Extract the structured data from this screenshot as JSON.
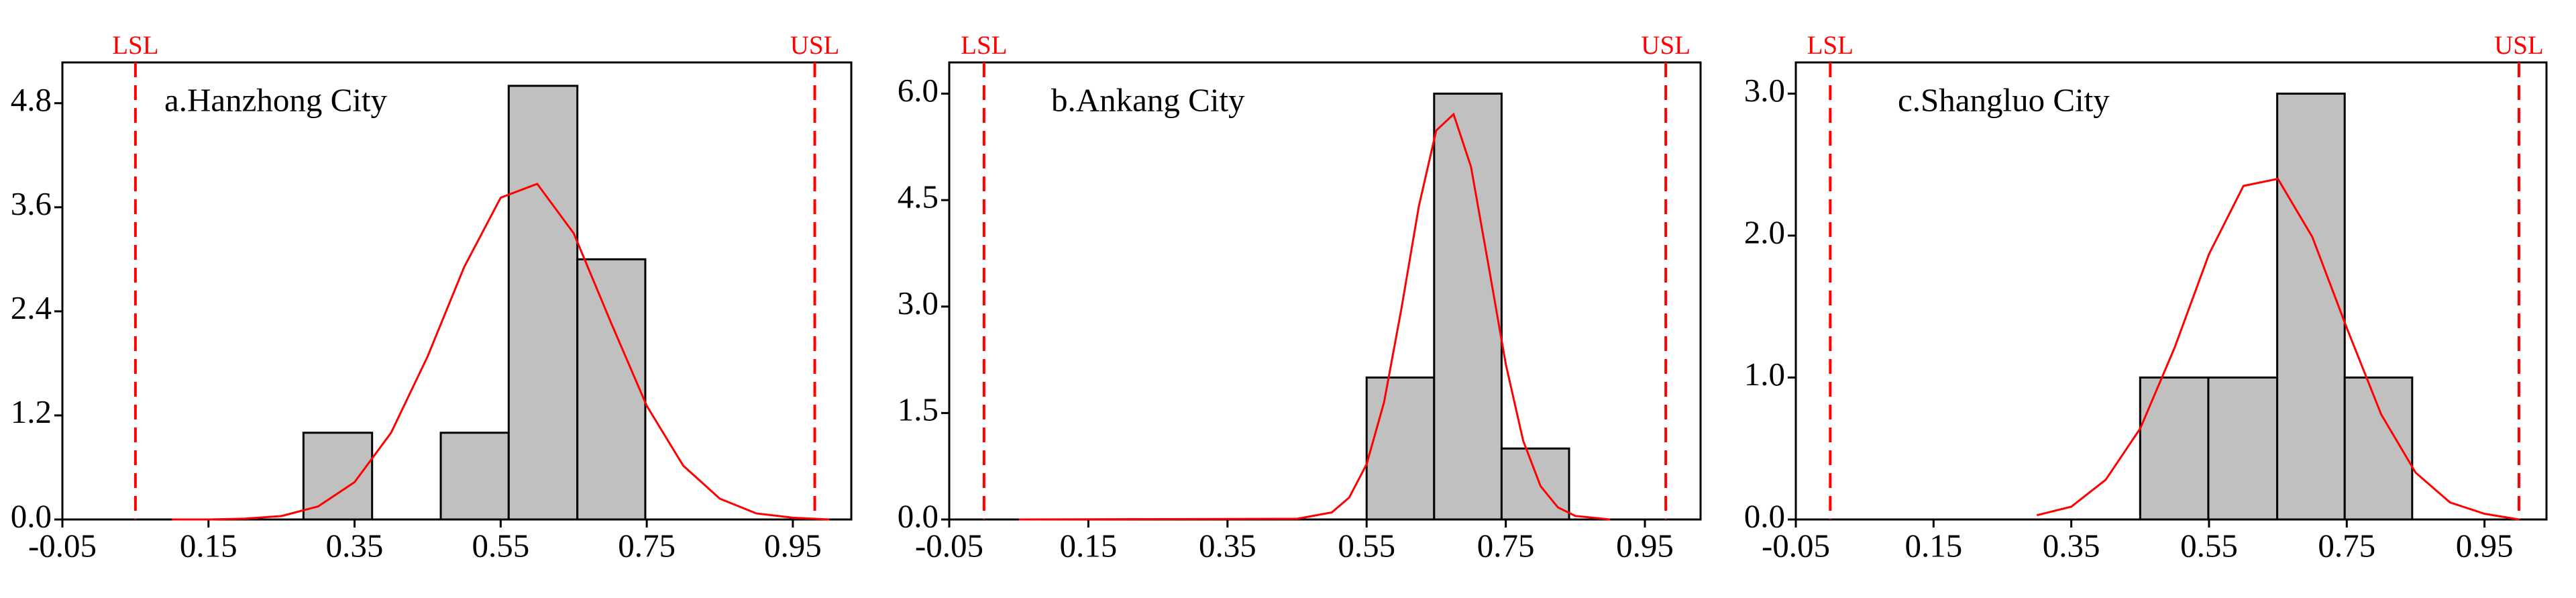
{
  "chart_data": [
    {
      "type": "histogram",
      "title": "a.Hanzhong City",
      "bins": [
        0.28,
        0.374,
        0.468,
        0.561,
        0.655,
        0.748
      ],
      "counts": [
        1,
        0,
        1,
        5,
        3
      ],
      "color": "#c0c0c0",
      "curve": {
        "x": [
          0.1,
          0.15,
          0.2,
          0.25,
          0.3,
          0.35,
          0.4,
          0.45,
          0.5,
          0.55,
          0.6,
          0.65,
          0.7,
          0.75,
          0.8,
          0.85,
          0.9,
          0.95,
          1.0
        ],
        "values": [
          0.0,
          0.0,
          0.01,
          0.04,
          0.15,
          0.43,
          1.0,
          1.88,
          2.91,
          3.71,
          3.87,
          3.3,
          2.29,
          1.31,
          0.62,
          0.24,
          0.07,
          0.02,
          0.0
        ],
        "color": "#ff0000"
      },
      "spec_lines": [
        {
          "label": "LSL",
          "value": 0.05
        },
        {
          "label": "USL",
          "value": 0.98
        }
      ],
      "spec_color": "#ff0000",
      "xlim": [
        -0.05,
        1.03
      ],
      "xticks": [
        -0.05,
        0.15,
        0.35,
        0.55,
        0.75,
        0.95
      ],
      "ylim": [
        0,
        5.27
      ],
      "yticks": [
        {
          "value": 0,
          "label": "0.0"
        },
        1.2,
        2.4,
        3.6,
        4.8
      ]
    },
    {
      "type": "histogram",
      "title": "b.Ankang City",
      "bins": [
        0.55,
        0.647,
        0.744,
        0.841
      ],
      "counts": [
        2,
        6,
        1
      ],
      "color": "#c0c0c0",
      "curve": {
        "x": [
          0.05,
          0.45,
          0.5,
          0.525,
          0.55,
          0.575,
          0.6,
          0.625,
          0.65,
          0.675,
          0.7,
          0.725,
          0.75,
          0.775,
          0.8,
          0.825,
          0.85,
          0.9
        ],
        "values": [
          0.0,
          0.01,
          0.1,
          0.31,
          0.78,
          1.65,
          2.97,
          4.41,
          5.48,
          5.71,
          4.97,
          3.59,
          2.19,
          1.11,
          0.47,
          0.17,
          0.05,
          0.0
        ],
        "color": "#ff0000"
      },
      "spec_lines": [
        {
          "label": "LSL",
          "value": 0.0
        },
        {
          "label": "USL",
          "value": 0.98
        }
      ],
      "spec_color": "#ff0000",
      "xlim": [
        -0.05,
        1.03
      ],
      "xticks": [
        -0.05,
        0.15,
        0.35,
        0.55,
        0.75,
        0.95
      ],
      "ylim": [
        0,
        6.44
      ],
      "yticks": [
        {
          "value": 0,
          "label": "0.0"
        },
        1.5,
        {
          "value": 3,
          "label": "3.0"
        },
        4.5,
        {
          "value": 6,
          "label": "6.0"
        }
      ]
    },
    {
      "type": "histogram",
      "title": "c.Shangluo City",
      "bins": [
        0.45,
        0.549,
        0.649,
        0.747,
        0.845
      ],
      "counts": [
        1,
        1,
        3,
        1
      ],
      "color": "#c0c0c0",
      "curve": {
        "x": [
          0.3,
          0.35,
          0.4,
          0.45,
          0.5,
          0.55,
          0.6,
          0.65,
          0.7,
          0.75,
          0.8,
          0.85,
          0.9,
          0.95,
          1.0
        ],
        "values": [
          0.03,
          0.09,
          0.28,
          0.64,
          1.21,
          1.87,
          2.35,
          2.4,
          1.99,
          1.35,
          0.74,
          0.33,
          0.12,
          0.04,
          0.0
        ],
        "color": "#ff0000"
      },
      "spec_lines": [
        {
          "label": "LSL",
          "value": 0.0
        },
        {
          "label": "USL",
          "value": 1.0
        }
      ],
      "spec_color": "#ff0000",
      "xlim": [
        -0.05,
        1.04
      ],
      "xticks": [
        -0.05,
        0.15,
        0.35,
        0.55,
        0.75,
        0.95
      ],
      "ylim": [
        0,
        3.22
      ],
      "yticks": [
        {
          "value": 0,
          "label": "0.0"
        },
        {
          "value": 1,
          "label": "1.0"
        },
        {
          "value": 2,
          "label": "2.0"
        },
        {
          "value": 3,
          "label": "3.0"
        }
      ]
    }
  ]
}
